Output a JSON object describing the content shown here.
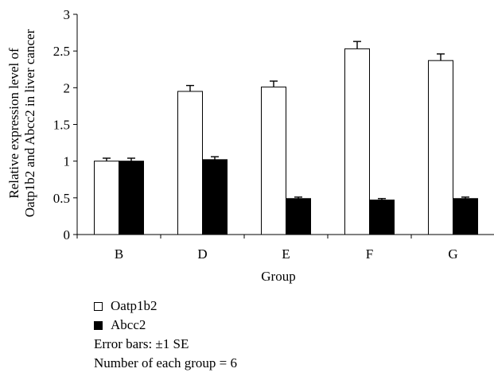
{
  "chart_data": {
    "type": "bar",
    "title": "",
    "xlabel": "Group",
    "ylabel_lines": [
      "Relative expression level of",
      "Oatp1b2 and Abcc2 in liver cancer"
    ],
    "categories": [
      "B",
      "D",
      "E",
      "F",
      "G"
    ],
    "series": [
      {
        "name": "Oatp1b2",
        "values": [
          1.0,
          1.95,
          2.01,
          2.53,
          2.37
        ],
        "errors": [
          0.04,
          0.08,
          0.08,
          0.1,
          0.09
        ],
        "fill": "#ffffff"
      },
      {
        "name": "Abcc2",
        "values": [
          1.0,
          1.02,
          0.49,
          0.47,
          0.49
        ],
        "errors": [
          0.04,
          0.04,
          0.02,
          0.02,
          0.02
        ],
        "fill": "#000000"
      }
    ],
    "ylim": [
      0,
      3
    ],
    "yticks": [
      0,
      0.5,
      1,
      1.5,
      2,
      2.5,
      3
    ],
    "ytick_labels": [
      "0",
      "0.5",
      "1",
      "1.5",
      "2",
      "2.5",
      "3"
    ],
    "grid": false,
    "legend_position": "bottom-left",
    "notes": [
      "Error bars: ±1 SE",
      "Number of each group = 6"
    ]
  }
}
